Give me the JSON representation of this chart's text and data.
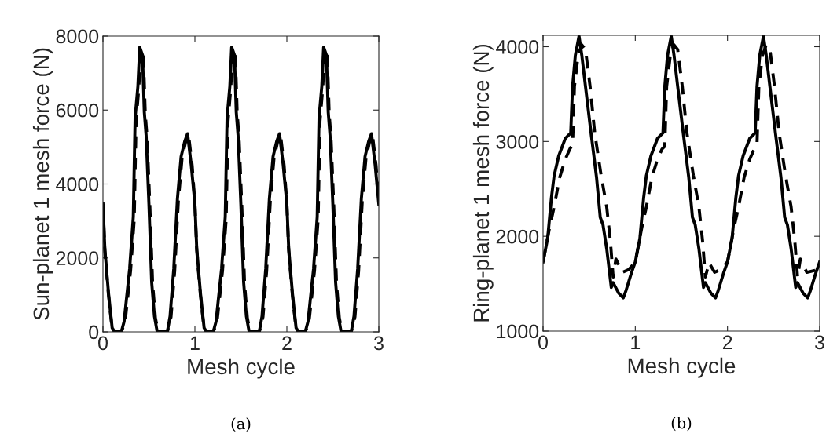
{
  "chart_data": [
    {
      "type": "line",
      "xlabel": "Mesh cycle",
      "ylabel": "Sun-planet 1 mesh force (N)",
      "xlim": [
        0,
        3
      ],
      "xticks": [
        0,
        1,
        2,
        3
      ],
      "ylim": [
        0,
        8000
      ],
      "yticks": [
        0,
        2000,
        4000,
        6000,
        8000
      ],
      "grid": false,
      "annotations": [
        "(a)"
      ],
      "series": [
        {
          "color": "#000000",
          "line_style": "solid",
          "x": [
            0,
            0.02,
            0.06,
            0.1,
            0.125,
            0.2,
            0.23,
            0.29,
            0.33,
            0.35,
            0.38,
            0.4,
            0.43,
            0.45,
            0.47,
            0.5,
            0.53,
            0.56,
            0.59,
            0.7,
            0.73,
            0.77,
            0.81,
            0.85,
            0.89,
            0.92,
            0.96,
            1,
            1.02,
            1.06,
            1.1,
            1.125,
            1.2,
            1.23,
            1.29,
            1.33,
            1.35,
            1.38,
            1.4,
            1.43,
            1.45,
            1.47,
            1.5,
            1.53,
            1.56,
            1.59,
            1.7,
            1.73,
            1.77,
            1.81,
            1.85,
            1.89,
            1.92,
            1.96,
            2,
            2.02,
            2.06,
            2.1,
            2.125,
            2.2,
            2.23,
            2.29,
            2.33,
            2.35,
            2.38,
            2.4,
            2.43,
            2.45,
            2.47,
            2.5,
            2.53,
            2.56,
            2.59,
            2.7,
            2.73,
            2.77,
            2.81,
            2.85,
            2.89,
            2.92,
            2.96,
            3
          ],
          "values": [
            3460,
            2260,
            1060,
            110,
            0,
            0,
            280,
            1700,
            3110,
            5800,
            6640,
            7700,
            7490,
            5940,
            5300,
            3460,
            1340,
            420,
            0,
            0,
            420,
            1700,
            3600,
            4740,
            5160,
            5360,
            4520,
            3460,
            2260,
            1060,
            110,
            0,
            0,
            280,
            1700,
            3110,
            5800,
            6640,
            7700,
            7490,
            5940,
            5300,
            3460,
            1340,
            420,
            0,
            0,
            420,
            1700,
            3600,
            4740,
            5160,
            5360,
            4520,
            3460,
            2260,
            1060,
            110,
            0,
            0,
            280,
            1700,
            3110,
            5800,
            6640,
            7700,
            7490,
            5940,
            5300,
            3460,
            1340,
            420,
            0,
            0,
            420,
            1700,
            3600,
            4740,
            5160,
            5360,
            4520,
            3460
          ]
        },
        {
          "color": "#000000",
          "line_style": "dashed",
          "x": [
            0,
            0.02,
            0.06,
            0.1,
            0.13,
            0.2,
            0.24,
            0.3,
            0.34,
            0.36,
            0.39,
            0.41,
            0.44,
            0.46,
            0.48,
            0.51,
            0.54,
            0.57,
            0.6,
            0.7,
            0.74,
            0.78,
            0.82,
            0.86,
            0.9,
            0.93,
            0.97,
            1,
            1.02,
            1.06,
            1.1,
            1.13,
            1.2,
            1.24,
            1.3,
            1.34,
            1.36,
            1.39,
            1.41,
            1.44,
            1.46,
            1.48,
            1.51,
            1.54,
            1.57,
            1.6,
            1.7,
            1.74,
            1.78,
            1.82,
            1.86,
            1.9,
            1.93,
            1.97,
            2,
            2.02,
            2.06,
            2.1,
            2.13,
            2.2,
            2.24,
            2.3,
            2.34,
            2.36,
            2.39,
            2.41,
            2.44,
            2.46,
            2.48,
            2.51,
            2.54,
            2.57,
            2.6,
            2.7,
            2.74,
            2.78,
            2.82,
            2.86,
            2.9,
            2.93,
            2.97,
            3
          ],
          "values": [
            3460,
            2200,
            1000,
            80,
            0,
            0,
            260,
            1650,
            3050,
            5700,
            6600,
            7650,
            7450,
            5900,
            5250,
            3400,
            1300,
            380,
            0,
            0,
            400,
            1650,
            3550,
            4700,
            5150,
            5350,
            4500,
            3460,
            2200,
            1000,
            80,
            0,
            0,
            260,
            1650,
            3050,
            5700,
            6600,
            7650,
            7450,
            5900,
            5250,
            3400,
            1300,
            380,
            0,
            0,
            400,
            1650,
            3550,
            4700,
            5150,
            5350,
            4500,
            3460,
            2200,
            1000,
            80,
            0,
            0,
            260,
            1650,
            3050,
            5700,
            6600,
            7650,
            7450,
            5900,
            5250,
            3400,
            1300,
            380,
            0,
            0,
            400,
            1650,
            3550,
            4700,
            5150,
            5350,
            4500,
            3460
          ]
        }
      ]
    },
    {
      "type": "line",
      "xlabel": "Mesh cycle",
      "ylabel": "Ring-planet 1 mesh force (N)",
      "xlim": [
        0,
        3
      ],
      "xticks": [
        0,
        1,
        2,
        3
      ],
      "ylim": [
        1000,
        4120
      ],
      "yticks": [
        1000,
        2000,
        3000,
        4000
      ],
      "grid": false,
      "annotations": [
        "(b)"
      ],
      "series": [
        {
          "color": "#000000",
          "line_style": "solid",
          "x": [
            0,
            0.05,
            0.09,
            0.12,
            0.17,
            0.24,
            0.3,
            0.32,
            0.35,
            0.39,
            0.42,
            0.46,
            0.52,
            0.58,
            0.62,
            0.65,
            0.69,
            0.74,
            0.76,
            0.82,
            0.87,
            0.9,
            0.96,
            1,
            1.05,
            1.09,
            1.12,
            1.17,
            1.24,
            1.3,
            1.32,
            1.35,
            1.39,
            1.42,
            1.46,
            1.52,
            1.58,
            1.62,
            1.65,
            1.69,
            1.74,
            1.76,
            1.82,
            1.87,
            1.9,
            1.96,
            2,
            2.05,
            2.09,
            2.12,
            2.17,
            2.24,
            2.3,
            2.32,
            2.35,
            2.39,
            2.42,
            2.46,
            2.52,
            2.58,
            2.62,
            2.65,
            2.69,
            2.74,
            2.76,
            2.82,
            2.87,
            2.9,
            2.96,
            3
          ],
          "values": [
            1730,
            1980,
            2400,
            2640,
            2850,
            3030,
            3090,
            3580,
            3910,
            4110,
            3910,
            3580,
            3090,
            2620,
            2200,
            2120,
            1870,
            1460,
            1510,
            1400,
            1350,
            1430,
            1620,
            1730,
            1980,
            2400,
            2640,
            2850,
            3030,
            3090,
            3580,
            3910,
            4110,
            3910,
            3580,
            3090,
            2620,
            2200,
            2120,
            1870,
            1460,
            1510,
            1400,
            1350,
            1430,
            1620,
            1730,
            1980,
            2400,
            2640,
            2850,
            3030,
            3090,
            3580,
            3910,
            4110,
            3910,
            3580,
            3090,
            2620,
            2200,
            2120,
            1870,
            1460,
            1510,
            1400,
            1350,
            1430,
            1620,
            1730
          ]
        },
        {
          "color": "#000000",
          "line_style": "dashed",
          "x": [
            0,
            0.07,
            0.12,
            0.18,
            0.24,
            0.29,
            0.32,
            0.34,
            0.38,
            0.42,
            0.46,
            0.51,
            0.56,
            0.63,
            0.69,
            0.73,
            0.76,
            0.79,
            0.86,
            0.93,
            1,
            1.07,
            1.12,
            1.18,
            1.24,
            1.29,
            1.32,
            1.34,
            1.38,
            1.42,
            1.46,
            1.51,
            1.56,
            1.63,
            1.69,
            1.73,
            1.76,
            1.8,
            1.86,
            1.93,
            2,
            2.07,
            2.12,
            2.18,
            2.24,
            2.29,
            2.32,
            2.34,
            2.38,
            2.42,
            2.46,
            2.51,
            2.56,
            2.63,
            2.69,
            2.73,
            2.76,
            2.79,
            2.86,
            2.95,
            3
          ],
          "values": [
            1730,
            2090,
            2310,
            2620,
            2810,
            2920,
            2970,
            3580,
            3910,
            4020,
            3970,
            3580,
            3090,
            2640,
            2310,
            1950,
            1570,
            1760,
            1620,
            1650,
            1730,
            2090,
            2310,
            2620,
            2810,
            2920,
            2950,
            3580,
            3910,
            4020,
            3970,
            3580,
            3090,
            2640,
            2310,
            1950,
            1570,
            1720,
            1620,
            1650,
            1730,
            2090,
            2310,
            2620,
            2810,
            2920,
            2970,
            3580,
            3910,
            4020,
            3970,
            3580,
            3090,
            2640,
            2310,
            1950,
            1570,
            1760,
            1620,
            1640,
            1730
          ]
        }
      ]
    }
  ]
}
